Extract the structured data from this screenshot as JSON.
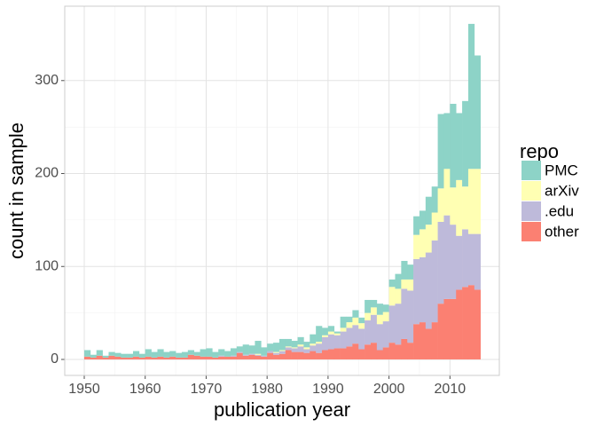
{
  "chart_data": {
    "type": "histogram",
    "x_label": "publication year",
    "y_label": "count in sample",
    "legend_title": "repo",
    "bins": [
      1950,
      1951,
      1952,
      1953,
      1954,
      1955,
      1956,
      1957,
      1958,
      1959,
      1960,
      1961,
      1962,
      1963,
      1964,
      1965,
      1966,
      1967,
      1968,
      1969,
      1970,
      1971,
      1972,
      1973,
      1974,
      1975,
      1976,
      1977,
      1978,
      1979,
      1980,
      1981,
      1982,
      1983,
      1984,
      1985,
      1986,
      1987,
      1988,
      1989,
      1990,
      1991,
      1992,
      1993,
      1994,
      1995,
      1996,
      1997,
      1998,
      1999,
      2000,
      2001,
      2002,
      2003,
      2004,
      2005,
      2006,
      2007,
      2008,
      2009,
      2010,
      2011,
      2012,
      2013,
      2014,
      2015
    ],
    "series": [
      {
        "name": "PMC",
        "color": "#8dd3c7",
        "values": [
          7,
          3,
          6,
          2,
          4,
          4,
          4,
          4,
          6,
          4,
          8,
          6,
          8,
          6,
          6,
          5,
          6,
          5,
          4,
          8,
          9,
          6,
          7,
          6,
          8,
          6,
          11,
          9,
          14,
          9,
          8,
          10,
          12,
          8,
          7,
          8,
          6,
          10,
          17,
          8,
          6,
          2,
          12,
          6,
          8,
          6,
          14,
          8,
          12,
          8,
          8,
          16,
          20,
          16,
          20,
          20,
          30,
          28,
          80,
          60,
          90,
          72,
          92,
          156,
          122
        ]
      },
      {
        "name": "arXiv",
        "color": "#ffffb3",
        "values": [
          0,
          0,
          0,
          0,
          0,
          0,
          0,
          0,
          0,
          0,
          0,
          0,
          0,
          0,
          0,
          0,
          0,
          0,
          0,
          0,
          0,
          0,
          0,
          0,
          0,
          0,
          0,
          0,
          1,
          0,
          0,
          1,
          1,
          1,
          1,
          2,
          2,
          2,
          2,
          2,
          3,
          2,
          4,
          6,
          8,
          6,
          8,
          8,
          10,
          10,
          20,
          16,
          10,
          12,
          26,
          30,
          30,
          30,
          36,
          50,
          40,
          60,
          46,
          70,
          70
        ]
      },
      {
        "name": ".edu",
        "color": "#bebada",
        "values": [
          0,
          0,
          0,
          0,
          0,
          0,
          0,
          0,
          0,
          0,
          0,
          0,
          0,
          0,
          0,
          0,
          0,
          0,
          0,
          0,
          0,
          0,
          1,
          0,
          1,
          1,
          1,
          1,
          1,
          1,
          2,
          2,
          3,
          3,
          4,
          6,
          4,
          6,
          10,
          14,
          16,
          14,
          18,
          20,
          20,
          22,
          26,
          30,
          28,
          28,
          40,
          44,
          54,
          56,
          70,
          70,
          82,
          88,
          88,
          90,
          80,
          58,
          62,
          55,
          60
        ]
      },
      {
        "name": "other",
        "color": "#fb8072",
        "values": [
          3,
          2,
          4,
          2,
          4,
          3,
          2,
          2,
          3,
          2,
          3,
          2,
          3,
          2,
          3,
          2,
          2,
          5,
          4,
          3,
          3,
          2,
          3,
          3,
          3,
          7,
          4,
          5,
          4,
          3,
          7,
          5,
          6,
          10,
          8,
          8,
          7,
          9,
          7,
          10,
          11,
          12,
          12,
          14,
          17,
          11,
          16,
          18,
          10,
          13,
          18,
          16,
          22,
          18,
          38,
          40,
          33,
          40,
          60,
          65,
          65,
          75,
          78,
          80,
          75
        ]
      }
    ],
    "xlim": [
      1946.8,
      2018.1
    ],
    "ylim": [
      -17.2,
      380
    ],
    "xticks": [
      1950,
      1960,
      1970,
      1980,
      1990,
      2000,
      2010
    ],
    "yticks": [
      0,
      100,
      200,
      300
    ],
    "grid": true
  }
}
